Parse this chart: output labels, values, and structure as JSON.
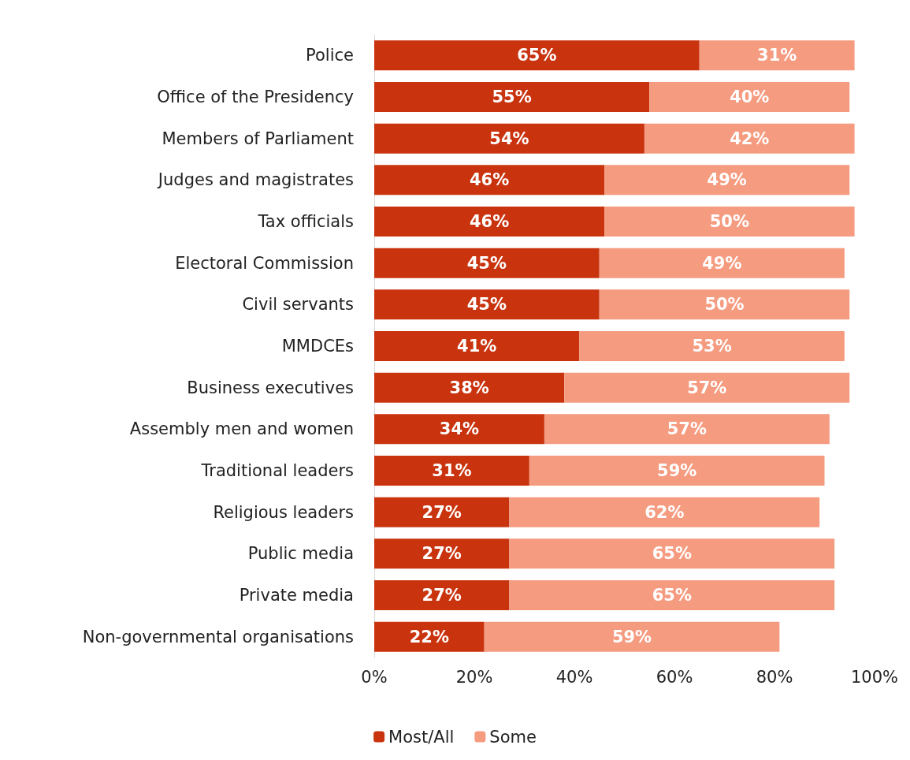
{
  "chart_data": {
    "type": "bar",
    "orientation": "horizontal",
    "stacked": true,
    "categories": [
      "Police",
      "Office of the Presidency",
      "Members of Parliament",
      "Judges and magistrates",
      "Tax officials",
      "Electoral Commission",
      "Civil servants",
      "MMDCEs",
      "Business executives",
      "Assembly men and women",
      "Traditional leaders",
      "Religious leaders",
      "Public media",
      "Private media",
      "Non-governmental organisations"
    ],
    "series": [
      {
        "name": "Most/All",
        "color": "#c9340f",
        "values": [
          65,
          55,
          54,
          46,
          46,
          45,
          45,
          41,
          38,
          34,
          31,
          27,
          27,
          27,
          22
        ],
        "value_labels": [
          "65%",
          "55%",
          "54%",
          "46%",
          "46%",
          "45%",
          "45%",
          "41%",
          "38%",
          "34%",
          "31%",
          "27%",
          "27%",
          "27%",
          "22%"
        ]
      },
      {
        "name": "Some",
        "color": "#f59b80",
        "values": [
          31,
          40,
          42,
          49,
          50,
          49,
          50,
          53,
          57,
          57,
          59,
          62,
          65,
          65,
          59
        ],
        "value_labels": [
          "31%",
          "40%",
          "42%",
          "49%",
          "50%",
          "49%",
          "50%",
          "53%",
          "57%",
          "57%",
          "59%",
          "62%",
          "65%",
          "65%",
          "59%"
        ]
      }
    ],
    "xlim": [
      0,
      100
    ],
    "xticks": [
      {
        "value": 0,
        "label": "0%"
      },
      {
        "value": 20,
        "label": "20%"
      },
      {
        "value": 40,
        "label": "40%"
      },
      {
        "value": 60,
        "label": "60%"
      },
      {
        "value": 80,
        "label": "80%"
      },
      {
        "value": 100,
        "label": "100%"
      }
    ],
    "grid": false,
    "legend": "bottom"
  }
}
